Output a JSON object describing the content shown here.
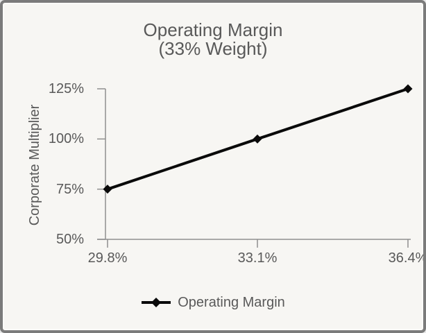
{
  "title": {
    "line1": "Operating Margin",
    "line2": "(33% Weight)"
  },
  "y_axis": {
    "label": "Corporate Multiplier",
    "tick_labels": [
      "125%",
      "100%",
      "75%",
      "50%"
    ]
  },
  "x_axis": {
    "tick_labels": [
      "29.8%",
      "33.1%",
      "36.4%"
    ]
  },
  "legend": {
    "label": "Operating Margin"
  },
  "colors": {
    "background": "#f7f6f3",
    "frame_border": "#7b7b7b",
    "text": "#595959",
    "axis": "#8f8f8f",
    "series": "#0a0a0a"
  },
  "chart_data": {
    "type": "line",
    "title": "Operating Margin (33% Weight)",
    "categories": [
      "29.8%",
      "33.1%",
      "36.4%"
    ],
    "series": [
      {
        "name": "Operating Margin",
        "values": [
          75,
          100,
          125
        ],
        "marker": "diamond",
        "color": "#0a0a0a"
      }
    ],
    "xlabel": "",
    "ylabel": "Corporate Multiplier",
    "ylim": [
      50,
      125
    ],
    "yticks": [
      125,
      100,
      75,
      50
    ],
    "ytick_labels": [
      "125%",
      "100%",
      "75%",
      "50%"
    ],
    "grid": false,
    "legend_position": "bottom"
  }
}
